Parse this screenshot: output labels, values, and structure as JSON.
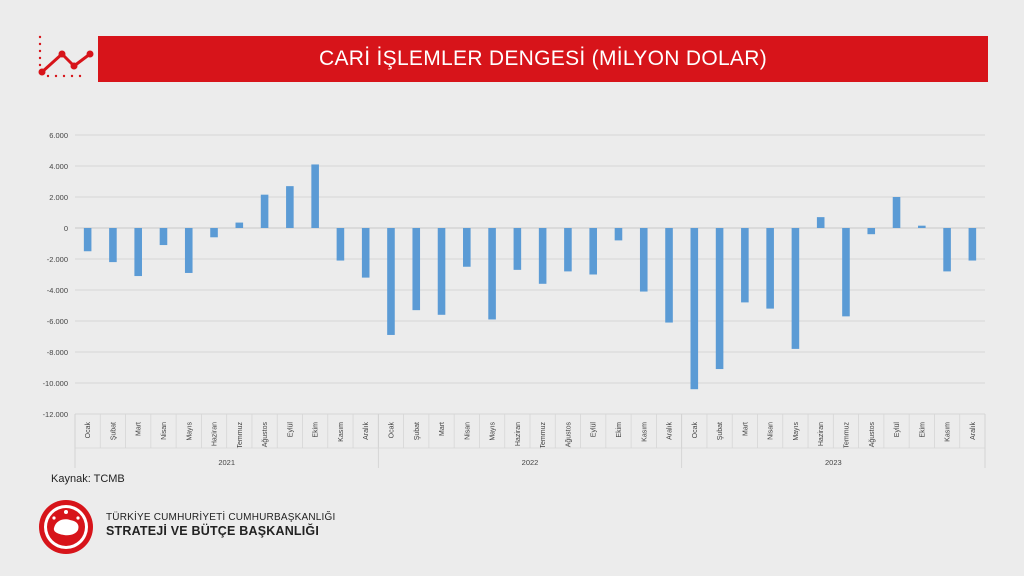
{
  "header": {
    "title": "CARİ İŞLEMLER DENGESİ (MİLYON DOLAR)"
  },
  "colors": {
    "banner": "#d7141a",
    "bar": "#5b9bd5",
    "background": "#ececec"
  },
  "icons": {
    "header_icon": "line-chart-icon",
    "seal": "government-seal-icon"
  },
  "footer": {
    "source": "Kaynak: TCMB",
    "org_line1": "TÜRKİYE CUMHURİYETİ CUMHURBAŞKANLIĞI",
    "org_line2": "STRATEJİ VE BÜTÇE BAŞKANLIĞI"
  },
  "chart_data": {
    "type": "bar",
    "title": "CARİ İŞLEMLER DENGESİ (MİLYON DOLAR)",
    "xlabel": "",
    "ylabel": "",
    "ylim": [
      -12000,
      6000
    ],
    "yticks": [
      6000,
      4000,
      2000,
      0,
      -2000,
      -4000,
      -6000,
      -8000,
      -10000,
      -12000
    ],
    "ytick_labels": [
      "6.000",
      "4.000",
      "2.000",
      "0",
      "-2.000",
      "-4.000",
      "-6.000",
      "-8.000",
      "-10.000",
      "-12.000"
    ],
    "grid": true,
    "legend": "none",
    "groups": [
      {
        "year": "2021",
        "categories": [
          "Ocak",
          "Şubat",
          "Mart",
          "Nisan",
          "Mayıs",
          "Haziran",
          "Temmuz",
          "Ağustos",
          "Eylül",
          "Ekim",
          "Kasım",
          "Aralık"
        ],
        "values": [
          -1500,
          -2200,
          -3100,
          -1100,
          -2900,
          -600,
          350,
          2150,
          2700,
          4100,
          -2100,
          -3200
        ]
      },
      {
        "year": "2022",
        "categories": [
          "Ocak",
          "Şubat",
          "Mart",
          "Nisan",
          "Mayıs",
          "Haziran",
          "Temmuz",
          "Ağustos",
          "Eylül",
          "Ekim",
          "Kasım",
          "Aralık"
        ],
        "values": [
          -6900,
          -5300,
          -5600,
          -2500,
          -5900,
          -2700,
          -3600,
          -2800,
          -3000,
          -800,
          -4100,
          -6100
        ]
      },
      {
        "year": "2023",
        "categories": [
          "Ocak",
          "Şubat",
          "Mart",
          "Nisan",
          "Mayıs",
          "Haziran",
          "Temmuz",
          "Ağustos",
          "Eylül",
          "Ekim",
          "Kasım",
          "Aralık"
        ],
        "values": [
          -10400,
          -9100,
          -4800,
          -5200,
          -7800,
          700,
          -5700,
          -400,
          2000,
          150,
          -2800,
          -2100
        ]
      }
    ]
  }
}
